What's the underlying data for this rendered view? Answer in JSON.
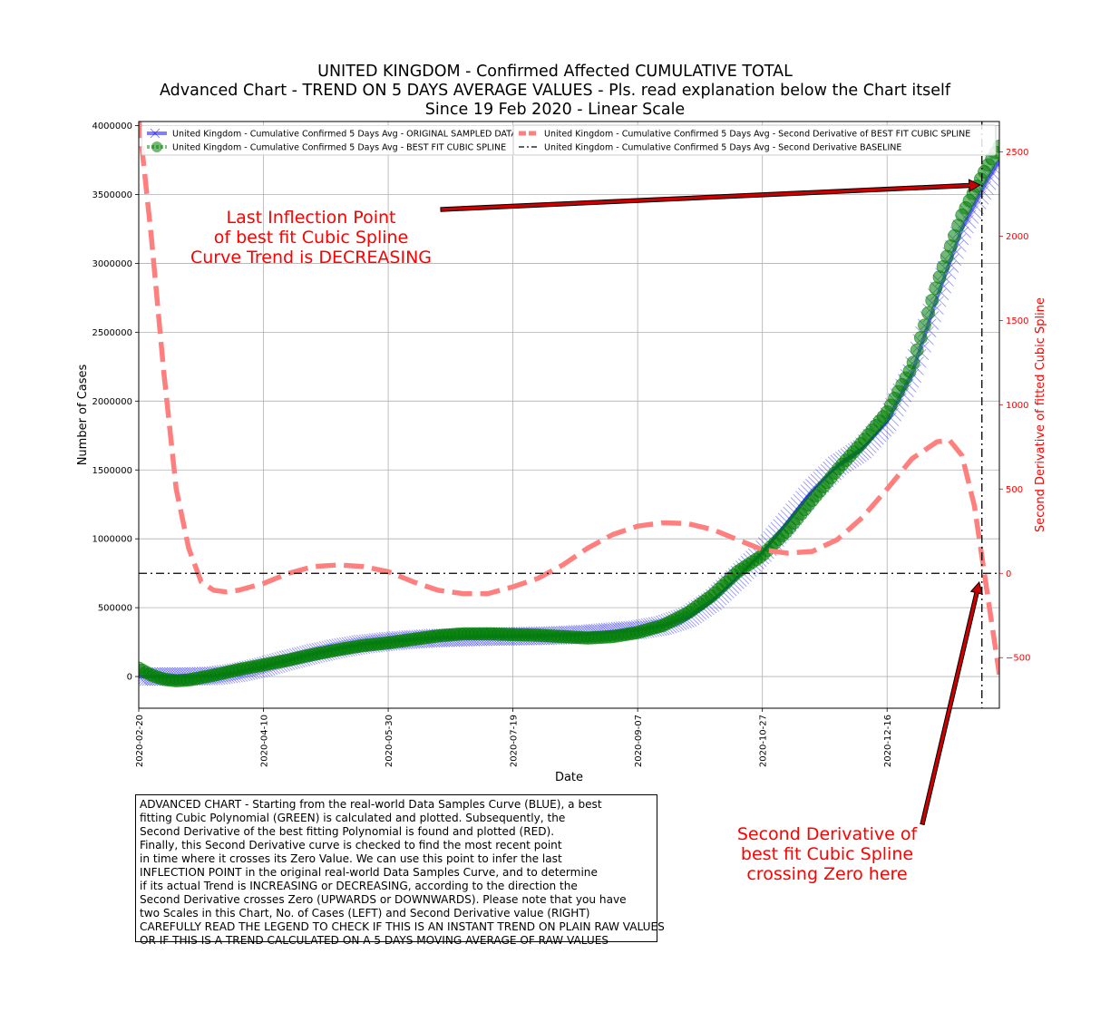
{
  "title": {
    "line1": "UNITED KINGDOM - Confirmed Affected CUMULATIVE TOTAL",
    "line2": "Advanced Chart - TREND ON 5 DAYS AVERAGE VALUES - Pls. read explanation below the Chart itself",
    "line3": "Since 19 Feb 2020 - Linear Scale"
  },
  "annotations": {
    "inflection": [
      "Last Inflection Point",
      "of best fit Cubic Spline",
      "Curve Trend is DECREASING"
    ],
    "second_derivative": [
      "Second Derivative of",
      "best fit Cubic Spline",
      "crossing Zero here"
    ]
  },
  "explanation": [
    "ADVANCED CHART - Starting from the real-world Data Samples Curve (BLUE), a best",
    "fitting Cubic Polynomial (GREEN) is calculated and plotted. Subsequently, the",
    "Second Derivative of the best fitting Polynomial is found and plotted (RED).",
    "Finally, this Second Derivative curve is checked to find the most recent point",
    "in time where it crosses its Zero Value. We can use this point to infer the last",
    "INFLECTION POINT in the original real-world Data Samples Curve, and to determine",
    "if its actual Trend is INCREASING or DECREASING, according to the direction the",
    "Second Derivative crosses Zero (UPWARDS or DOWNWARDS). Please note that you have",
    "two Scales in this Chart, No. of Cases (LEFT) and Second Derivative value (RIGHT)",
    "CAREFULLY READ THE LEGEND TO CHECK IF THIS IS AN INSTANT TREND ON PLAIN RAW VALUES",
    "OR IF THIS IS A TREND CALCULATED ON A 5 DAYS MOVING AVERAGE OF RAW VALUES"
  ],
  "colors": {
    "original": "#0000ff",
    "fit": "#008000",
    "second_derivative": "#ff7f7f",
    "baseline": "#000000",
    "annotation": "#ff0000",
    "arrow_fill": "#cc0000",
    "grid": "#b0b0b0"
  },
  "chart_data": {
    "type": "line",
    "xlabel": "Date",
    "ylabel": "Number of Cases",
    "ylabel_right": "Second Derivative of fitted Cubic Spline",
    "x_ticks": [
      "2020-02-20",
      "2020-04-10",
      "2020-05-30",
      "2020-07-19",
      "2020-09-07",
      "2020-10-27",
      "2020-12-16"
    ],
    "y_ticks_left": [
      "0",
      "500000",
      "1000000",
      "1500000",
      "2000000",
      "2500000",
      "3000000",
      "3500000",
      "4000000"
    ],
    "y_ticks_right": [
      "−500",
      "0",
      "500",
      "1000",
      "1500",
      "2000",
      "2500"
    ],
    "ylim_left": [
      -230000,
      4030000
    ],
    "ylim_right": [
      -800,
      2680
    ],
    "xlim_days": [
      0,
      345
    ],
    "grid": true,
    "legend_placement": "top",
    "legend": [
      "United Kingdom - Cumulative Confirmed 5 Days Avg - ORIGINAL SAMPLED DATA",
      "United Kingdom - Cumulative Confirmed 5 Days Avg - BEST FIT CUBIC SPLINE",
      "United Kingdom - Cumulative Confirmed 5 Days Avg - Second Derivative of BEST FIT CUBIC SPLINE",
      "United Kingdom - Cumulative Confirmed 5 Days Avg - Second Derivative BASELINE"
    ],
    "series": [
      {
        "name": "United Kingdom - Cumulative Confirmed 5 Days Avg - ORIGINAL SAMPLED DATA",
        "axis": "left",
        "x": [
          "2020-02-20",
          "2020-03-01",
          "2020-03-11",
          "2020-03-21",
          "2020-03-31",
          "2020-04-10",
          "2020-04-20",
          "2020-04-30",
          "2020-05-10",
          "2020-05-20",
          "2020-05-30",
          "2020-06-09",
          "2020-06-19",
          "2020-06-29",
          "2020-07-09",
          "2020-07-19",
          "2020-07-29",
          "2020-08-08",
          "2020-08-18",
          "2020-08-28",
          "2020-09-07",
          "2020-09-17",
          "2020-09-27",
          "2020-10-07",
          "2020-10-17",
          "2020-10-27",
          "2020-11-06",
          "2020-11-16",
          "2020-11-26",
          "2020-12-06",
          "2020-12-16",
          "2020-12-26",
          "2021-01-05",
          "2021-01-15",
          "2021-01-25",
          "2021-01-30"
        ],
        "values": [
          0,
          0,
          0,
          5000,
          30000,
          70000,
          120000,
          165000,
          205000,
          235000,
          255000,
          270000,
          280000,
          285000,
          290000,
          292000,
          295000,
          300000,
          310000,
          325000,
          340000,
          370000,
          430000,
          550000,
          720000,
          900000,
          1120000,
          1350000,
          1530000,
          1650000,
          1850000,
          2200000,
          2750000,
          3250000,
          3600000,
          3750000
        ]
      },
      {
        "name": "United Kingdom - Cumulative Confirmed 5 Days Avg - BEST FIT CUBIC SPLINE",
        "axis": "left",
        "x": [
          "2020-02-20",
          "2020-02-25",
          "2020-03-01",
          "2020-03-06",
          "2020-03-11",
          "2020-03-21",
          "2020-03-31",
          "2020-04-10",
          "2020-04-20",
          "2020-04-30",
          "2020-05-10",
          "2020-05-20",
          "2020-05-30",
          "2020-06-09",
          "2020-06-19",
          "2020-06-29",
          "2020-07-09",
          "2020-07-19",
          "2020-07-29",
          "2020-08-08",
          "2020-08-18",
          "2020-08-28",
          "2020-09-07",
          "2020-09-17",
          "2020-09-27",
          "2020-10-07",
          "2020-10-17",
          "2020-10-27",
          "2020-11-06",
          "2020-11-16",
          "2020-11-26",
          "2020-12-06",
          "2020-12-16",
          "2020-12-26",
          "2021-01-05",
          "2021-01-15",
          "2021-01-25",
          "2021-01-30"
        ],
        "values": [
          60000,
          10000,
          -20000,
          -30000,
          -25000,
          10000,
          50000,
          85000,
          120000,
          160000,
          195000,
          225000,
          245000,
          270000,
          295000,
          310000,
          310000,
          305000,
          300000,
          290000,
          280000,
          290000,
          320000,
          370000,
          460000,
          590000,
          760000,
          880000,
          1060000,
          1280000,
          1500000,
          1700000,
          1920000,
          2250000,
          2850000,
          3350000,
          3700000,
          3850000
        ]
      },
      {
        "name": "United Kingdom - Cumulative Confirmed 5 Days Avg - Second Derivative of BEST FIT CUBIC SPLINE",
        "axis": "right",
        "x": [
          "2020-02-20",
          "2020-02-25",
          "2020-03-01",
          "2020-03-06",
          "2020-03-11",
          "2020-03-16",
          "2020-03-21",
          "2020-03-26",
          "2020-03-31",
          "2020-04-05",
          "2020-04-10",
          "2020-04-20",
          "2020-04-30",
          "2020-05-10",
          "2020-05-20",
          "2020-05-30",
          "2020-06-09",
          "2020-06-19",
          "2020-06-29",
          "2020-07-09",
          "2020-07-19",
          "2020-07-29",
          "2020-08-08",
          "2020-08-18",
          "2020-08-28",
          "2020-09-07",
          "2020-09-17",
          "2020-09-27",
          "2020-10-07",
          "2020-10-17",
          "2020-10-27",
          "2020-11-06",
          "2020-11-16",
          "2020-11-26",
          "2020-12-06",
          "2020-12-16",
          "2020-12-26",
          "2021-01-05",
          "2021-01-10",
          "2021-01-15",
          "2021-01-20",
          "2021-01-25",
          "2021-01-30"
        ],
        "values": [
          2700,
          2000,
          1200,
          500,
          150,
          -50,
          -100,
          -110,
          -100,
          -80,
          -60,
          0,
          40,
          50,
          40,
          10,
          -50,
          -100,
          -120,
          -120,
          -80,
          -30,
          50,
          150,
          230,
          280,
          300,
          295,
          260,
          200,
          140,
          120,
          130,
          200,
          330,
          500,
          680,
          780,
          790,
          700,
          400,
          -100,
          -600
        ]
      },
      {
        "name": "United Kingdom - Cumulative Confirmed 5 Days Avg - Second Derivative BASELINE",
        "axis": "right",
        "x": [
          "2020-02-20",
          "2021-01-30"
        ],
        "values": [
          0,
          0
        ]
      }
    ],
    "inflection_date_approx": "2021-01-23"
  }
}
